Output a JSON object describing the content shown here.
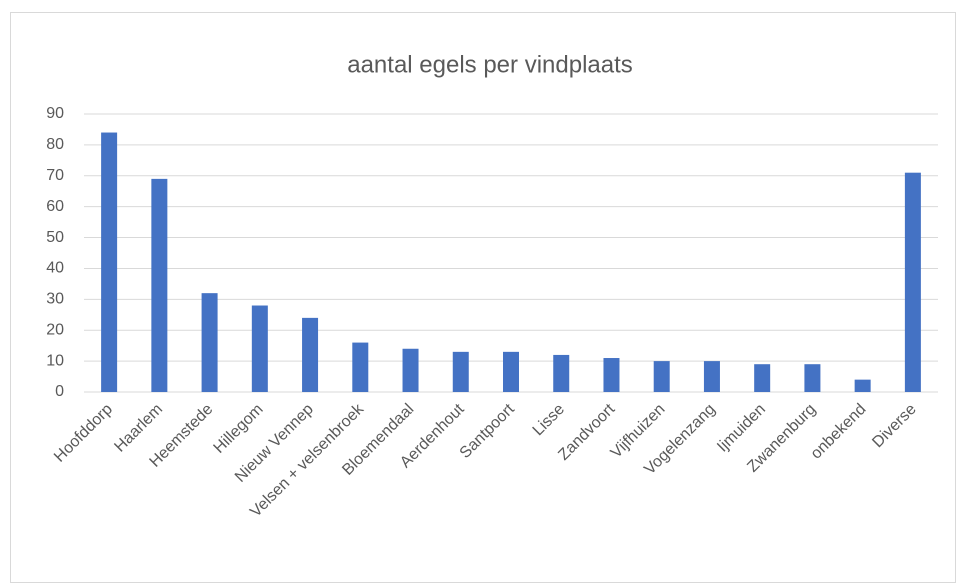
{
  "chart_data": {
    "type": "bar",
    "title": "aantal egels per vindplaats",
    "categories": [
      "Hoofddorp",
      "Haarlem",
      "Heemstede",
      "Hillegom",
      "Nieuw Vennep",
      "Velsen + velsenbroek",
      "Bloemendaal",
      "Aerdenhout",
      "Santpoort",
      "Lisse",
      "Zandvoort",
      "Vijfhuizen",
      "Vogelenzang",
      "Ijmuiden",
      "Zwanenburg",
      "onbekend",
      "Diverse"
    ],
    "values": [
      84,
      69,
      32,
      28,
      24,
      16,
      14,
      13,
      13,
      12,
      11,
      10,
      10,
      9,
      9,
      4,
      71
    ],
    "color": "#4472c4",
    "ylim": [
      0,
      90
    ],
    "yticks": [
      0,
      10,
      20,
      30,
      40,
      50,
      60,
      70,
      80,
      90
    ],
    "grid": true
  }
}
